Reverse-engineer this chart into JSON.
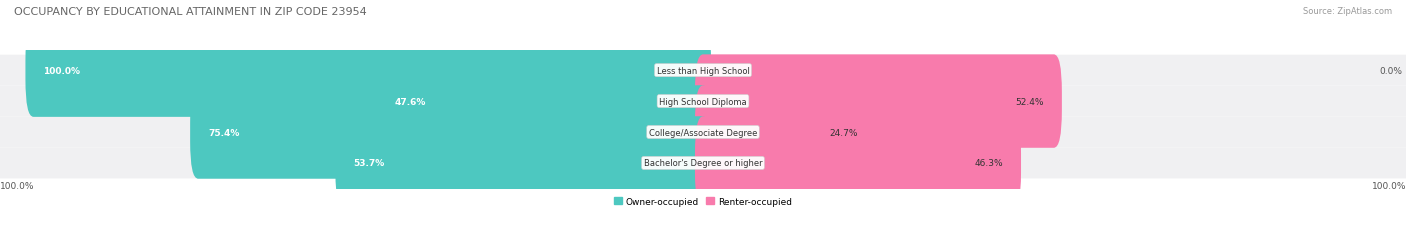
{
  "title": "OCCUPANCY BY EDUCATIONAL ATTAINMENT IN ZIP CODE 23954",
  "source": "Source: ZipAtlas.com",
  "categories": [
    "Less than High School",
    "High School Diploma",
    "College/Associate Degree",
    "Bachelor's Degree or higher"
  ],
  "owner_values": [
    100.0,
    47.6,
    75.4,
    53.7
  ],
  "renter_values": [
    0.0,
    52.4,
    24.7,
    46.3
  ],
  "owner_color": "#4DC8C0",
  "renter_color": "#F87BAC",
  "row_color": "#f0f0f2",
  "title_color": "#666666",
  "owner_label": "Owner-occupied",
  "renter_label": "Renter-occupied",
  "axis_left_label": "100.0%",
  "axis_right_label": "100.0%",
  "figsize": [
    14.06,
    2.32
  ],
  "dpi": 100
}
